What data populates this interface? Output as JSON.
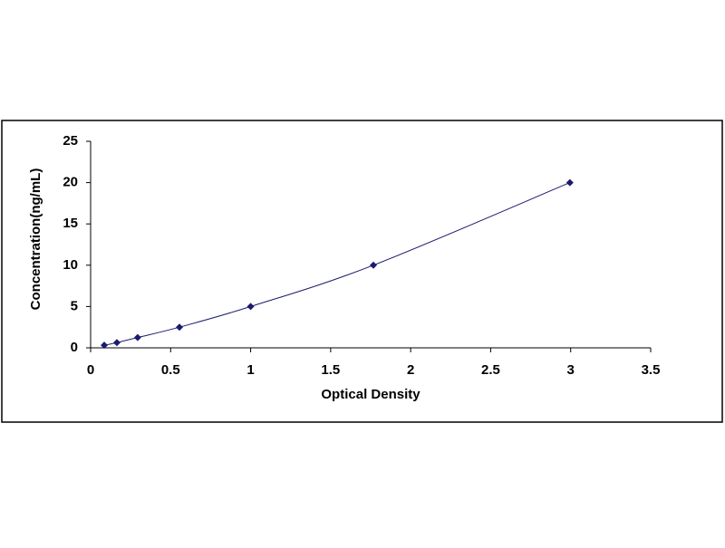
{
  "chart_data": {
    "type": "scatter",
    "x_label": "Optical Density",
    "y_label": "Concentration(ng/mL)",
    "series": [
      {
        "color": "#1a1a6e",
        "x": [
          0.085,
          0.164,
          0.294,
          0.555,
          1.0,
          1.767,
          2.995
        ],
        "values": [
          0.31,
          0.63,
          1.25,
          2.5,
          5,
          10,
          20
        ]
      }
    ],
    "trendline": true,
    "xlim": [
      0,
      3.5
    ],
    "xticks": [
      0,
      0.5,
      1,
      1.5,
      2,
      2.5,
      3,
      3.5
    ],
    "ylim": [
      0,
      25
    ],
    "yticks": [
      0,
      5,
      10,
      15,
      20,
      25
    ],
    "grid": false
  }
}
